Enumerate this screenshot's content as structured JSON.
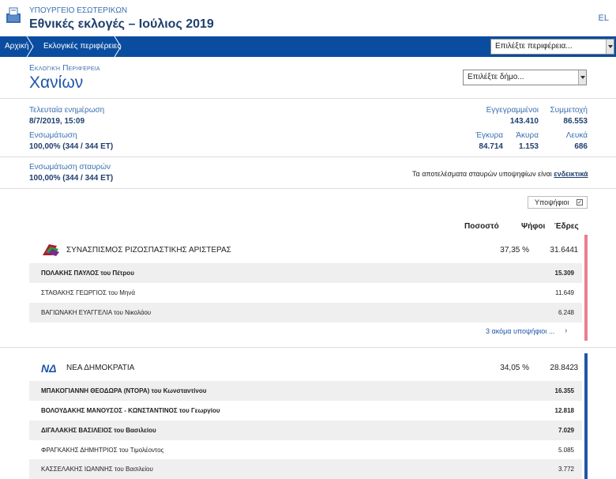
{
  "header": {
    "ministry": "ΥΠΟΥΡΓΕΙΟ ΕΣΩΤΕΡΙΚΩΝ",
    "title": "Εθνικές εκλογές – Ιούλιος 2019",
    "lang": "EL"
  },
  "nav": {
    "home": "Αρχική",
    "regions": "Εκλογικές περιφέρειες",
    "region_select": "Επιλέξτε περιφέρεια..."
  },
  "region": {
    "label": "Εκλογική Περιφέρεια",
    "name": "Χανίων",
    "municipality_select": "Επιλέξτε δήμο..."
  },
  "stats": {
    "last_update_label": "Τελευταία ενημέρωση",
    "last_update_value": "8/7/2019, 15:09",
    "integration_label": "Ενσωμάτωση",
    "integration_value": "100,00% (344 / 344 ΕΤ)",
    "registered_label": "Εγγεγραμμένοι",
    "registered_value": "143.410",
    "turnout_label": "Συμμετοχή",
    "turnout_value": "86.553",
    "valid_label": "Έγκυρα",
    "valid_value": "84.714",
    "invalid_label": "Άκυρα",
    "invalid_value": "1.153",
    "blank_label": "Λευκά",
    "blank_value": "686",
    "cross_label": "Ενσωμάτωση σταυρών",
    "cross_value": "100,00% (344 / 344 ΕΤ)",
    "note_text": "Τα αποτελέσματα σταυρών υποψηφίων είναι ",
    "note_link": "ενδεικτικά"
  },
  "table": {
    "candidates_toggle": "Υποψήφιοι",
    "col_percent": "Ποσοστό",
    "col_votes": "Ψήφοι",
    "col_seats": "Έδρες"
  },
  "parties": [
    {
      "name": "ΣΥΝΑΣΠΙΣΜΟΣ ΡΙΖΟΣΠΑΣΤΙΚΗΣ ΑΡΙΣΤΕΡΑΣ",
      "percent": "37,35 %",
      "votes": "31.644",
      "seats": "1",
      "color": "#e8808e",
      "candidates": [
        {
          "name": "ΠΟΛΑΚΗΣ ΠΑΥΛΟΣ του Πέτρου",
          "votes": "15.309"
        },
        {
          "name": "ΣΤΑΘΑΚΗΣ ΓΕΩΡΓΙΟΣ του Μηνά",
          "votes": "11.649"
        },
        {
          "name": "ΒΑΓΙΩΝΑΚΗ ΕΥΑΓΓΕΛΙΑ του Νικολάου",
          "votes": "6.248"
        }
      ],
      "more": "3 ακόμα υποψήφιοι ..."
    },
    {
      "name": "ΝΕΑ ΔΗΜΟΚΡΑΤΙΑ",
      "percent": "34,05 %",
      "votes": "28.842",
      "seats": "3",
      "color": "#1f56a8",
      "candidates": [
        {
          "name": "ΜΠΑΚΟΓΙΑΝΝΗ ΘΕΟΔΩΡΑ (ΝΤΟΡΑ) του Κωνσταντίνου",
          "votes": "16.355"
        },
        {
          "name": "ΒΟΛΟΥΔΑΚΗΣ ΜΑΝΟΥΣΟΣ - ΚΩΝΣΤΑΝΤΙΝΟΣ του Γεωργίου",
          "votes": "12.818"
        },
        {
          "name": "ΔΙΓΑΛΑΚΗΣ ΒΑΣΙΛΕΙΟΣ του Βασιλείου",
          "votes": "7.029"
        },
        {
          "name": "ΦΡΑΓΚΑΚΗΣ ΔΗΜΗΤΡΙΟΣ του Τιμολέοντος",
          "votes": "5.085"
        },
        {
          "name": "ΚΑΣΣΕΛΑΚΗΣ ΙΩΑΝΝΗΣ του Βασιλείου",
          "votes": "3.772"
        }
      ]
    }
  ]
}
